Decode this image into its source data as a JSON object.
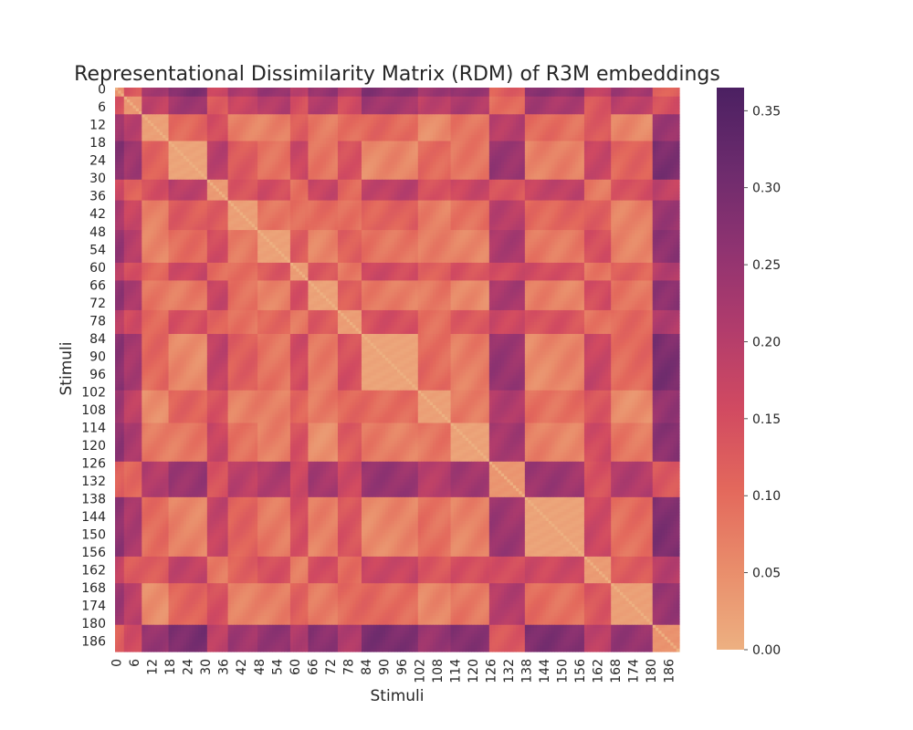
{
  "chart_data": {
    "type": "heatmap",
    "title": "Representational Dissimilarity Matrix (RDM) of R3M embeddings",
    "xlabel": "Stimuli",
    "ylabel": "Stimuli",
    "n": 190,
    "tick_labels": [
      "0",
      "6",
      "12",
      "18",
      "24",
      "30",
      "36",
      "42",
      "48",
      "54",
      "60",
      "66",
      "72",
      "78",
      "84",
      "90",
      "96",
      "102",
      "108",
      "114",
      "120",
      "126",
      "132",
      "138",
      "144",
      "150",
      "156",
      "162",
      "168",
      "174",
      "180",
      "186"
    ],
    "colorbar": {
      "vmin": 0.0,
      "vmax": 0.365,
      "ticks": [
        "0.00",
        "0.05",
        "0.10",
        "0.15",
        "0.20",
        "0.25",
        "0.30",
        "0.35"
      ],
      "colormap": "flare",
      "colors": [
        "#EDB081",
        "#E98D6B",
        "#E3685C",
        "#D14A61",
        "#B13C6C",
        "#8F3371",
        "#6C2B6D",
        "#4B2062"
      ]
    },
    "blocks": [
      {
        "start": 0,
        "end": 2,
        "level": 0.9
      },
      {
        "start": 3,
        "end": 8,
        "level": 0.75
      },
      {
        "start": 9,
        "end": 17,
        "level": 0.3
      },
      {
        "start": 18,
        "end": 30,
        "level": 0.1
      },
      {
        "start": 31,
        "end": 37,
        "level": 0.6
      },
      {
        "start": 38,
        "end": 47,
        "level": 0.35
      },
      {
        "start": 48,
        "end": 58,
        "level": 0.25
      },
      {
        "start": 59,
        "end": 64,
        "level": 0.5
      },
      {
        "start": 65,
        "end": 74,
        "level": 0.2
      },
      {
        "start": 75,
        "end": 82,
        "level": 0.45
      },
      {
        "start": 83,
        "end": 101,
        "level": 0.12
      },
      {
        "start": 102,
        "end": 112,
        "level": 0.3
      },
      {
        "start": 113,
        "end": 125,
        "level": 0.2
      },
      {
        "start": 126,
        "end": 137,
        "level": 0.8
      },
      {
        "start": 138,
        "end": 157,
        "level": 0.15
      },
      {
        "start": 158,
        "end": 166,
        "level": 0.55
      },
      {
        "start": 167,
        "end": 180,
        "level": 0.3
      },
      {
        "start": 181,
        "end": 189,
        "level": 0.95
      }
    ]
  }
}
